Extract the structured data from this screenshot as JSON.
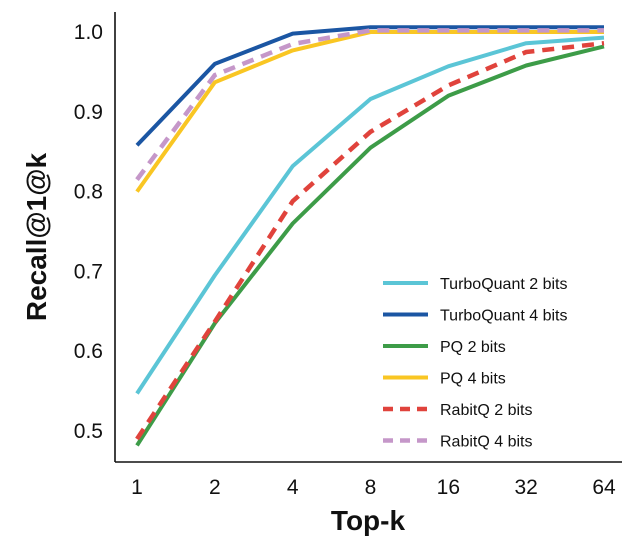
{
  "chart_data": {
    "type": "line",
    "title": "",
    "xlabel": "Top-k",
    "ylabel": "Recall@1@k",
    "x_categories": [
      "1",
      "2",
      "4",
      "8",
      "16",
      "32",
      "64"
    ],
    "ylim": [
      0.47,
      1.025
    ],
    "y_ticks": [
      0.5,
      0.6,
      0.7,
      0.8,
      0.9,
      1.0
    ],
    "y_tick_labels": [
      "0.5",
      "0.6",
      "0.7",
      "0.8",
      "0.9",
      "1.0"
    ],
    "grid": false,
    "legend_position": "lower-right",
    "series": [
      {
        "name": "TurboQuant 2 bits",
        "color": "#5bc5d6",
        "dash": "solid",
        "values": [
          0.547,
          0.695,
          0.832,
          0.916,
          0.957,
          0.986,
          0.993
        ]
      },
      {
        "name": "TurboQuant 4 bits",
        "color": "#1b56a3",
        "dash": "solid",
        "values": [
          0.858,
          0.96,
          0.998,
          1.006,
          1.006,
          1.006,
          1.006
        ]
      },
      {
        "name": "PQ 2 bits",
        "color": "#3d9c48",
        "dash": "solid",
        "values": [
          0.482,
          0.635,
          0.76,
          0.855,
          0.92,
          0.958,
          0.982
        ]
      },
      {
        "name": "PQ 4 bits",
        "color": "#f9c623",
        "dash": "solid",
        "values": [
          0.8,
          0.937,
          0.977,
          1.0,
          1.0,
          1.0,
          1.0
        ]
      },
      {
        "name": "RabitQ 2 bits",
        "color": "#e0433c",
        "dash": "dashed",
        "values": [
          0.49,
          0.637,
          0.788,
          0.875,
          0.933,
          0.975,
          0.986
        ]
      },
      {
        "name": "RabitQ 4 bits",
        "color": "#c597c9",
        "dash": "dashed",
        "values": [
          0.815,
          0.946,
          0.985,
          1.002,
          1.002,
          1.002,
          1.002
        ]
      }
    ]
  }
}
